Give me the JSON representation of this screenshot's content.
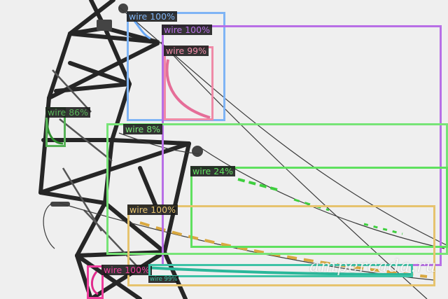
{
  "watermark": "ampercada.ru",
  "detections": [
    {
      "label": "wire 100%",
      "color": "#7fb4f5"
    },
    {
      "label": "wire 100%",
      "color": "#b86fe6"
    },
    {
      "label": "wire 99%",
      "color": "#ef8aa7"
    },
    {
      "label": "wire 86%",
      "color": "#58b258"
    },
    {
      "label": "wire 8%",
      "color": "#77e477"
    },
    {
      "label": "wire 24%",
      "color": "#5fe05f"
    },
    {
      "label": "wire 100%",
      "color": "#e6c36e"
    },
    {
      "label": "wire 100%",
      "color": "#ee3c9c"
    },
    {
      "label": "wire 99%",
      "color": "#3ec2a6"
    }
  ]
}
